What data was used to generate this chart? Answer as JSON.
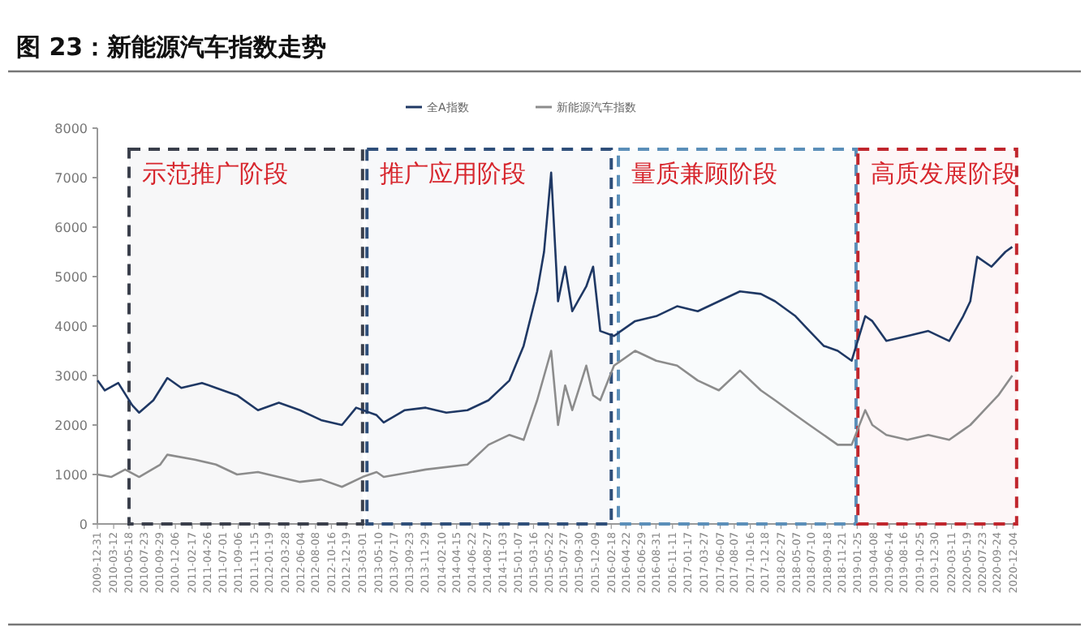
{
  "chart_data": {
    "type": "line",
    "title": "图 23：新能源汽车指数走势",
    "xlim": [
      "2009-12-31",
      "2020-12-10"
    ],
    "xticks": [
      "2009-12-31",
      "2010-03-12",
      "2010-05-18",
      "2010-07-23",
      "2010-09-29",
      "2010-12-06",
      "2011-02-17",
      "2011-04-26",
      "2011-07-01",
      "2011-09-06",
      "2011-11-15",
      "2012-01-19",
      "2012-03-28",
      "2012-06-04",
      "2012-08-08",
      "2012-10-16",
      "2012-12-19",
      "2013-03-01",
      "2013-05-10",
      "2013-07-17",
      "2013-09-23",
      "2013-11-29",
      "2014-02-10",
      "2014-04-15",
      "2014-06-22",
      "2014-08-27",
      "2014-11-03",
      "2015-01-07",
      "2015-03-16",
      "2015-05-22",
      "2015-07-27",
      "2015-09-30",
      "2015-12-09",
      "2016-02-18",
      "2016-04-22",
      "2016-06-29",
      "2016-08-31",
      "2016-11-11",
      "2017-01-17",
      "2017-03-27",
      "2017-06-07",
      "2017-08-07",
      "2017-10-16",
      "2017-12-18",
      "2018-02-27",
      "2018-05-07",
      "2018-07-10",
      "2018-09-18",
      "2018-11-21",
      "2019-01-25",
      "2019-04-08",
      "2019-06-14",
      "2019-08-16",
      "2019-10-25",
      "2019-12-30",
      "2020-03-11",
      "2020-05-19",
      "2020-07-23",
      "2020-09-24",
      "2020-12-04"
    ],
    "ylim": [
      0,
      8000
    ],
    "yticks": [
      0,
      1000,
      2000,
      3000,
      4000,
      5000,
      6000,
      7000,
      8000
    ],
    "grid": false,
    "legend": "top",
    "line_style": "solid",
    "marker": "none",
    "series": [
      {
        "name": "全A指数",
        "color": "#1f3864",
        "x": [
          "2010-01",
          "2010-02",
          "2010-04",
          "2010-06",
          "2010-07",
          "2010-09",
          "2010-11",
          "2011-01",
          "2011-04",
          "2011-06",
          "2011-09",
          "2011-12",
          "2012-03",
          "2012-06",
          "2012-09",
          "2012-12",
          "2013-02",
          "2013-05",
          "2013-06",
          "2013-09",
          "2013-12",
          "2014-03",
          "2014-06",
          "2014-09",
          "2014-12",
          "2015-02",
          "2015-04",
          "2015-05",
          "2015-06",
          "2015-07",
          "2015-08",
          "2015-09",
          "2015-11",
          "2015-12",
          "2016-01",
          "2016-03",
          "2016-06",
          "2016-09",
          "2016-12",
          "2017-03",
          "2017-06",
          "2017-09",
          "2017-12",
          "2018-02",
          "2018-05",
          "2018-07",
          "2018-09",
          "2018-11",
          "2019-01",
          "2019-03",
          "2019-04",
          "2019-06",
          "2019-09",
          "2019-12",
          "2020-03",
          "2020-05",
          "2020-06",
          "2020-07",
          "2020-09",
          "2020-11",
          "2020-12"
        ],
        "values": [
          2900,
          2700,
          2850,
          2400,
          2250,
          2500,
          2950,
          2750,
          2850,
          2750,
          2600,
          2300,
          2450,
          2300,
          2100,
          2000,
          2350,
          2200,
          2050,
          2300,
          2350,
          2250,
          2300,
          2500,
          2900,
          3600,
          4700,
          5500,
          7100,
          4500,
          5200,
          4300,
          4800,
          5200,
          3900,
          3800,
          4100,
          4200,
          4400,
          4300,
          4500,
          4700,
          4650,
          4500,
          4200,
          3900,
          3600,
          3500,
          3300,
          4200,
          4100,
          3700,
          3800,
          3900,
          3700,
          4200,
          4500,
          5400,
          5200,
          5500,
          5600
        ]
      },
      {
        "name": "新能源汽车指数",
        "color": "#8c8c8c",
        "x": [
          "2010-01",
          "2010-03",
          "2010-05",
          "2010-07",
          "2010-10",
          "2010-11",
          "2011-03",
          "2011-06",
          "2011-09",
          "2011-12",
          "2012-06",
          "2012-09",
          "2012-12",
          "2013-03",
          "2013-05",
          "2013-06",
          "2013-12",
          "2014-06",
          "2014-09",
          "2014-12",
          "2015-02",
          "2015-04",
          "2015-06",
          "2015-07",
          "2015-08",
          "2015-09",
          "2015-11",
          "2015-12",
          "2016-01",
          "2016-03",
          "2016-06",
          "2016-09",
          "2016-12",
          "2017-03",
          "2017-06",
          "2017-09",
          "2017-12",
          "2018-02",
          "2018-05",
          "2018-07",
          "2018-09",
          "2018-11",
          "2019-01",
          "2019-03",
          "2019-04",
          "2019-06",
          "2019-09",
          "2019-12",
          "2020-03",
          "2020-05",
          "2020-06",
          "2020-08",
          "2020-10",
          "2020-12"
        ],
        "values": [
          1000,
          950,
          1100,
          950,
          1200,
          1400,
          1300,
          1200,
          1000,
          1050,
          850,
          900,
          750,
          950,
          1050,
          950,
          1100,
          1200,
          1600,
          1800,
          1700,
          2500,
          3500,
          2000,
          2800,
          2300,
          3200,
          2600,
          2500,
          3200,
          3500,
          3300,
          3200,
          2900,
          2700,
          3100,
          2700,
          2500,
          2200,
          2000,
          1800,
          1600,
          1600,
          2300,
          2000,
          1800,
          1700,
          1800,
          1700,
          1900,
          2000,
          2300,
          2600,
          3000
        ]
      }
    ],
    "bands": [
      {
        "axis": "x",
        "from": "2010-05-18",
        "to": "2013-03-01",
        "label": "示范推广阶段",
        "color": "#3a3f4b"
      },
      {
        "axis": "x",
        "from": "2013-03-20",
        "to": "2016-02-18",
        "label": "推广应用阶段",
        "color": "#2f4f7a"
      },
      {
        "axis": "x",
        "from": "2016-03-20",
        "to": "2019-01-20",
        "label": "量质兼顾阶段",
        "color": "#5b8fb9"
      },
      {
        "axis": "x",
        "from": "2019-01-28",
        "to": "2020-12-20",
        "label": "高质发展阶段",
        "color": "#c0262d"
      }
    ]
  }
}
